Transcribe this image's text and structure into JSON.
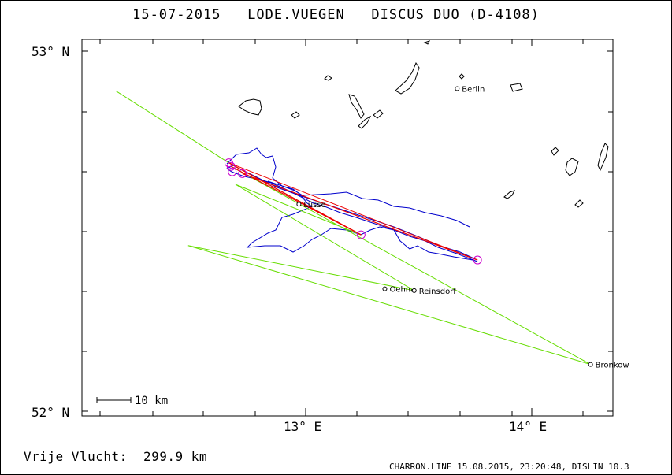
{
  "title": "15-07-2015   LODE.VUEGEN   DISCUS DUO (D-4108)",
  "axes": {
    "lat_top": "53° N",
    "lat_bottom": "52° N",
    "lon_left": "13° E",
    "lon_right": "14° E",
    "lon_range": [
      12.05,
      14.35
    ],
    "lat_range": [
      52.0,
      53.0
    ]
  },
  "scale_bar": "10 km",
  "places": [
    {
      "name": "Berlin",
      "lon": 13.67,
      "lat": 52.896
    },
    {
      "name": "Lüsse",
      "lon": 12.97,
      "lat": 52.575
    },
    {
      "name": "Oehna",
      "lon": 13.35,
      "lat": 52.34
    },
    {
      "name": "Reinsdorf",
      "lon": 13.48,
      "lat": 52.335
    },
    {
      "name": "Bronkow",
      "lon": 14.26,
      "lat": 52.13
    }
  ],
  "turnpoints": [
    {
      "lon": 12.66,
      "lat": 52.69
    },
    {
      "lon": 12.67,
      "lat": 52.68
    },
    {
      "lon": 12.675,
      "lat": 52.665
    },
    {
      "lon": 12.72,
      "lat": 52.66
    },
    {
      "lon": 13.245,
      "lat": 52.49
    },
    {
      "lon": 13.76,
      "lat": 52.42
    }
  ],
  "task_legs": [
    [
      [
        12.16,
        52.89
      ],
      [
        12.66,
        52.69
      ],
      [
        13.245,
        52.49
      ],
      [
        12.69,
        52.63
      ],
      [
        13.48,
        52.335
      ],
      [
        12.48,
        52.46
      ],
      [
        14.26,
        52.13
      ],
      [
        12.67,
        52.68
      ]
    ],
    [
      [
        12.66,
        52.69
      ],
      [
        13.76,
        52.42
      ]
    ]
  ],
  "flight_label": "Vrije Vlucht:  299.9 km",
  "footer": "CHARRON.LINE 15.08.2015, 23:20:48, DISLIN 10.3",
  "colors": {
    "track": "#0000cc",
    "task": "#66dd00",
    "optimized": "#ee0000",
    "turnpoint": "#cc00cc",
    "water": "#000000"
  }
}
